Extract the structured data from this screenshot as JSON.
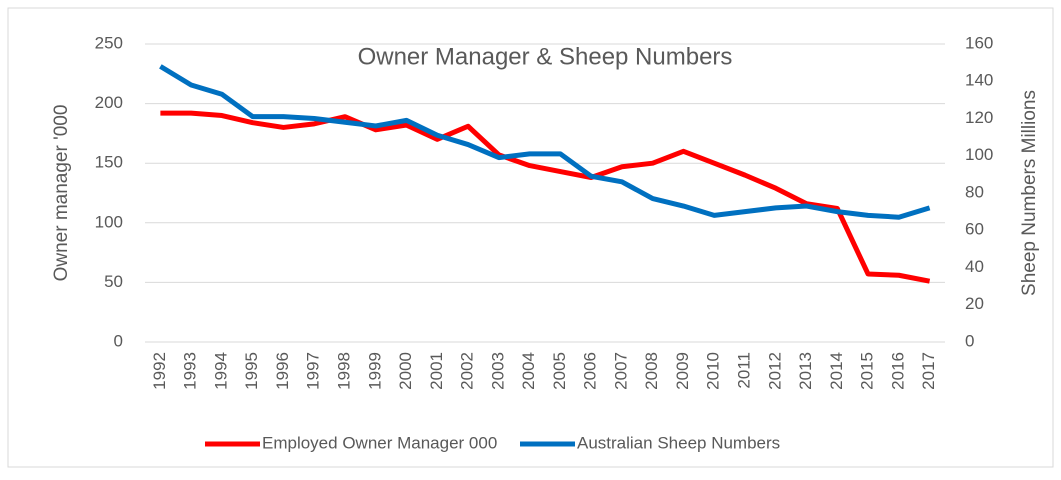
{
  "chart_data": {
    "type": "line",
    "title": "Owner Manager & Sheep Numbers",
    "categories": [
      "1992",
      "1993",
      "1994",
      "1995",
      "1996",
      "1997",
      "1998",
      "1999",
      "2000",
      "2001",
      "2002",
      "2003",
      "2004",
      "2005",
      "2006",
      "2007",
      "2008",
      "2009",
      "2010",
      "2011",
      "2012",
      "2013",
      "2014",
      "2015",
      "2016",
      "2017"
    ],
    "series": [
      {
        "name": "Employed Owner Manager 000",
        "color": "#ff0000",
        "axis": "y",
        "values": [
          192,
          192,
          190,
          184,
          180,
          183,
          189,
          178,
          182,
          170,
          181,
          157,
          148,
          143,
          138,
          147,
          150,
          160,
          150,
          140,
          129,
          116,
          112,
          57,
          56,
          51
        ]
      },
      {
        "name": "Australian Sheep  Numbers",
        "color": "#0070c0",
        "axis": "y2",
        "values": [
          148,
          138,
          133,
          121,
          121,
          120,
          118,
          116,
          119,
          111,
          106,
          99,
          101,
          101,
          89,
          86,
          77,
          73,
          68,
          70,
          72,
          73,
          70,
          68,
          67,
          72
        ]
      }
    ],
    "ylabel": "Owner manager '000",
    "y2label": "Sheep Numbers Millions",
    "ylim": [
      0,
      250
    ],
    "yticks": [
      0,
      50,
      100,
      150,
      200,
      250
    ],
    "y2lim": [
      0,
      160
    ],
    "y2ticks": [
      0,
      20,
      40,
      60,
      80,
      100,
      120,
      140,
      160
    ],
    "grid": true,
    "legend": "bottom"
  }
}
